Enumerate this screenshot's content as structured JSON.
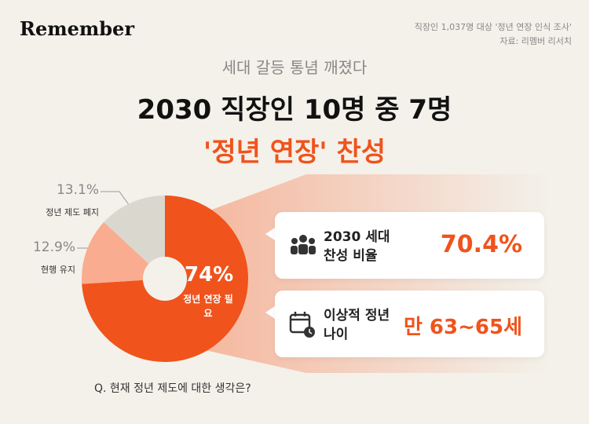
{
  "header": {
    "brand": "Remember",
    "source": "직장인 1,037명 대상 '정년 연장 인식 조사'",
    "credit": "자료: 리멤버 리서치"
  },
  "headline": {
    "subtitle": "세대 갈등 통념 깨졌다",
    "title": "2030 직장인 10명 중 7명",
    "highlight": "'정년 연장' 찬성"
  },
  "chart_data": {
    "type": "pie",
    "title": "Q. 현재 정년 제도에 대한 생각은?",
    "categories": [
      "정년 연장 필요",
      "현행 유지",
      "정년 제도 폐지"
    ],
    "values": [
      74,
      12.9,
      13.1
    ],
    "value_labels": [
      "74%",
      "12.9%",
      "13.1%"
    ],
    "colors": [
      "#f0531c",
      "#f9ac8f",
      "#dad7cf"
    ]
  },
  "cards": [
    {
      "label": "2030 세대 찬성 비율",
      "value": "70.4%"
    },
    {
      "label": "이상적 정년 나이",
      "value": "만 63~65세"
    }
  ]
}
